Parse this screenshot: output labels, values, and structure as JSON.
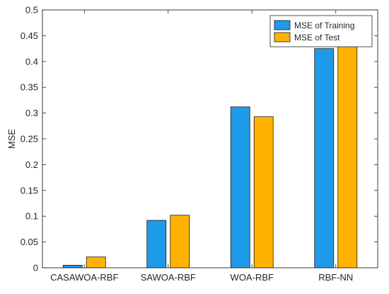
{
  "chart_data": {
    "type": "bar",
    "title": "",
    "xlabel": "",
    "ylabel": "MSE",
    "categories": [
      "CASAWOA-RBF",
      "SAWOA-RBF",
      "WOA-RBF",
      "RBF-NN"
    ],
    "ylim": [
      0,
      0.5
    ],
    "yticks": [
      "0",
      "0.05",
      "0.1",
      "0.15",
      "0.2",
      "0.25",
      "0.3",
      "0.35",
      "0.4",
      "0.45",
      "0.5"
    ],
    "grid": false,
    "legend_position": "top-right",
    "series": [
      {
        "name": "MSE of Training",
        "values": [
          0.005,
          0.092,
          0.312,
          0.425
        ],
        "color": "#1E9BE8"
      },
      {
        "name": "MSE of Test",
        "values": [
          0.021,
          0.102,
          0.293,
          0.436
        ],
        "color": "#FFB300"
      }
    ]
  }
}
